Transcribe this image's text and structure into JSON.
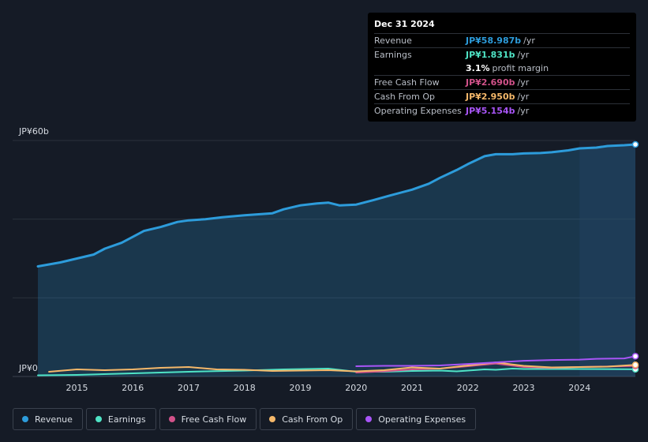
{
  "chart_data": {
    "type": "area",
    "y_axis": {
      "top_label": "JP¥60b",
      "bottom_label": "JP¥0",
      "ylim": [
        0,
        60
      ]
    },
    "x_ticks": [
      "2015",
      "2016",
      "2017",
      "2018",
      "2019",
      "2020",
      "2021",
      "2022",
      "2023",
      "2024"
    ],
    "xlim": [
      2014.3,
      2025.0
    ],
    "highlight_start": 2024.0,
    "series": [
      {
        "name": "Revenue",
        "color": "#2d9cdb",
        "fill": true,
        "points": [
          [
            2014.3,
            28
          ],
          [
            2014.7,
            29
          ],
          [
            2015.0,
            30
          ],
          [
            2015.3,
            31
          ],
          [
            2015.5,
            32.5
          ],
          [
            2015.8,
            34
          ],
          [
            2016.0,
            35.5
          ],
          [
            2016.2,
            37
          ],
          [
            2016.5,
            38
          ],
          [
            2016.8,
            39.3
          ],
          [
            2017.0,
            39.7
          ],
          [
            2017.3,
            40
          ],
          [
            2017.6,
            40.5
          ],
          [
            2018.0,
            41
          ],
          [
            2018.5,
            41.5
          ],
          [
            2018.7,
            42.5
          ],
          [
            2019.0,
            43.5
          ],
          [
            2019.3,
            44
          ],
          [
            2019.5,
            44.2
          ],
          [
            2019.7,
            43.5
          ],
          [
            2020.0,
            43.7
          ],
          [
            2020.3,
            44.8
          ],
          [
            2020.6,
            46
          ],
          [
            2021.0,
            47.5
          ],
          [
            2021.3,
            49
          ],
          [
            2021.5,
            50.5
          ],
          [
            2021.8,
            52.5
          ],
          [
            2022.0,
            54
          ],
          [
            2022.3,
            56
          ],
          [
            2022.5,
            56.5
          ],
          [
            2022.8,
            56.5
          ],
          [
            2023.0,
            56.7
          ],
          [
            2023.3,
            56.8
          ],
          [
            2023.5,
            57
          ],
          [
            2023.8,
            57.5
          ],
          [
            2024.0,
            58
          ],
          [
            2024.3,
            58.2
          ],
          [
            2024.5,
            58.6
          ],
          [
            2024.8,
            58.8
          ],
          [
            2025.0,
            59
          ]
        ]
      },
      {
        "name": "Earnings",
        "color": "#4fe3c5",
        "fill": false,
        "points": [
          [
            2014.3,
            0.3
          ],
          [
            2015.0,
            0.4
          ],
          [
            2016.0,
            0.8
          ],
          [
            2017.0,
            1.2
          ],
          [
            2018.0,
            1.5
          ],
          [
            2018.7,
            1.8
          ],
          [
            2019.5,
            2
          ],
          [
            2020.0,
            1.2
          ],
          [
            2020.5,
            1.2
          ],
          [
            2021.0,
            1.4
          ],
          [
            2021.5,
            1.5
          ],
          [
            2021.8,
            1.3
          ],
          [
            2022.3,
            1.8
          ],
          [
            2022.5,
            1.7
          ],
          [
            2022.8,
            2
          ],
          [
            2023.0,
            1.9
          ],
          [
            2023.5,
            1.9
          ],
          [
            2024.0,
            1.9
          ],
          [
            2025.0,
            1.831
          ]
        ]
      },
      {
        "name": "Free Cash Flow",
        "color": "#d2528a",
        "fill": false,
        "points": [
          [
            2020.0,
            1.0
          ],
          [
            2020.5,
            1.3
          ],
          [
            2021.0,
            1.8
          ],
          [
            2021.5,
            2.0
          ],
          [
            2022.0,
            2.6
          ],
          [
            2022.5,
            3.3
          ],
          [
            2023.0,
            2.4
          ],
          [
            2023.5,
            2.2
          ],
          [
            2024.0,
            2.4
          ],
          [
            2025.0,
            2.69
          ]
        ]
      },
      {
        "name": "Cash From Op",
        "color": "#f5b86a",
        "fill": false,
        "points": [
          [
            2014.5,
            1.2
          ],
          [
            2015.0,
            1.8
          ],
          [
            2015.5,
            1.6
          ],
          [
            2016.0,
            1.8
          ],
          [
            2016.5,
            2.2
          ],
          [
            2017.0,
            2.4
          ],
          [
            2017.5,
            1.8
          ],
          [
            2018.0,
            1.7
          ],
          [
            2018.5,
            1.4
          ],
          [
            2019.0,
            1.5
          ],
          [
            2019.5,
            1.6
          ],
          [
            2020.0,
            1.3
          ],
          [
            2020.5,
            1.6
          ],
          [
            2021.0,
            2.3
          ],
          [
            2021.5,
            2.0
          ],
          [
            2022.0,
            2.8
          ],
          [
            2022.5,
            3.6
          ],
          [
            2023.0,
            2.7
          ],
          [
            2023.5,
            2.3
          ],
          [
            2024.0,
            2.4
          ],
          [
            2024.5,
            2.5
          ],
          [
            2025.0,
            2.95
          ]
        ]
      },
      {
        "name": "Operating Expenses",
        "color": "#a855f7",
        "fill": false,
        "points": [
          [
            2020.0,
            2.6
          ],
          [
            2020.5,
            2.7
          ],
          [
            2021.0,
            2.7
          ],
          [
            2021.5,
            2.8
          ],
          [
            2022.0,
            3.2
          ],
          [
            2022.5,
            3.6
          ],
          [
            2023.0,
            4.0
          ],
          [
            2023.5,
            4.2
          ],
          [
            2024.0,
            4.3
          ],
          [
            2024.3,
            4.5
          ],
          [
            2024.8,
            4.6
          ],
          [
            2025.0,
            5.154
          ]
        ]
      }
    ]
  },
  "tooltip": {
    "date": "Dec 31 2024",
    "rows": [
      {
        "label": "Revenue",
        "value": "JP¥58.987b",
        "unit": "/yr",
        "color": "#2d9cdb"
      },
      {
        "label": "Earnings",
        "value": "JP¥1.831b",
        "unit": "/yr",
        "color": "#4fe3c5"
      },
      {
        "label": "",
        "value": "3.1%",
        "unit": "profit margin",
        "color": "#ffffff"
      },
      {
        "label": "Free Cash Flow",
        "value": "JP¥2.690b",
        "unit": "/yr",
        "color": "#d2528a"
      },
      {
        "label": "Cash From Op",
        "value": "JP¥2.950b",
        "unit": "/yr",
        "color": "#f5b86a"
      },
      {
        "label": "Operating Expenses",
        "value": "JP¥5.154b",
        "unit": "/yr",
        "color": "#a855f7"
      }
    ]
  },
  "legend": [
    {
      "label": "Revenue",
      "color": "#2d9cdb"
    },
    {
      "label": "Earnings",
      "color": "#4fe3c5"
    },
    {
      "label": "Free Cash Flow",
      "color": "#d2528a"
    },
    {
      "label": "Cash From Op",
      "color": "#f5b86a"
    },
    {
      "label": "Operating Expenses",
      "color": "#a855f7"
    }
  ]
}
